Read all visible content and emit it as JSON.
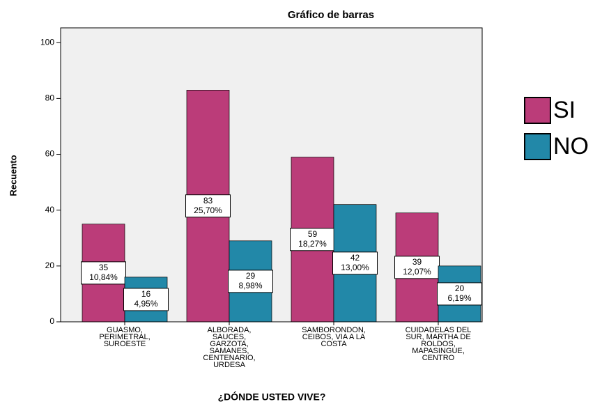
{
  "chart_data": {
    "type": "bar",
    "title": "Gráfico de barras",
    "x_label": "¿DÓNDE USTED VIVE?",
    "y_label": "Recuento",
    "categories": [
      "GUASMO,\nPERIMETRAL,\nSUROESTE",
      "ALBORADA,\nSAUCES,\nGARZOTA,\nSAMANES,\nCENTENARIO,\nURDESA",
      "SAMBORONDON,\nCEIBOS, VIA A LA\nCOSTA",
      "CUIDADELAS DEL\nSUR, MARTHA DE\nROLDOS,\nMAPASINGUE,\nCENTRO"
    ],
    "series": [
      {
        "name": "SI",
        "color": "#bb3c79",
        "values": [
          35,
          83,
          59,
          39
        ],
        "percent_labels": [
          "10,84%",
          "25,70%",
          "18,27%",
          "12,07%"
        ]
      },
      {
        "name": "NO",
        "color": "#2288a8",
        "values": [
          16,
          29,
          42,
          20
        ],
        "percent_labels": [
          "4,95%",
          "8,98%",
          "13,00%",
          "6,19%"
        ]
      }
    ],
    "ylim": [
      0,
      105.3
    ],
    "yticks": [
      0,
      20,
      40,
      60,
      80,
      100
    ],
    "grid": false,
    "legend": "right"
  }
}
